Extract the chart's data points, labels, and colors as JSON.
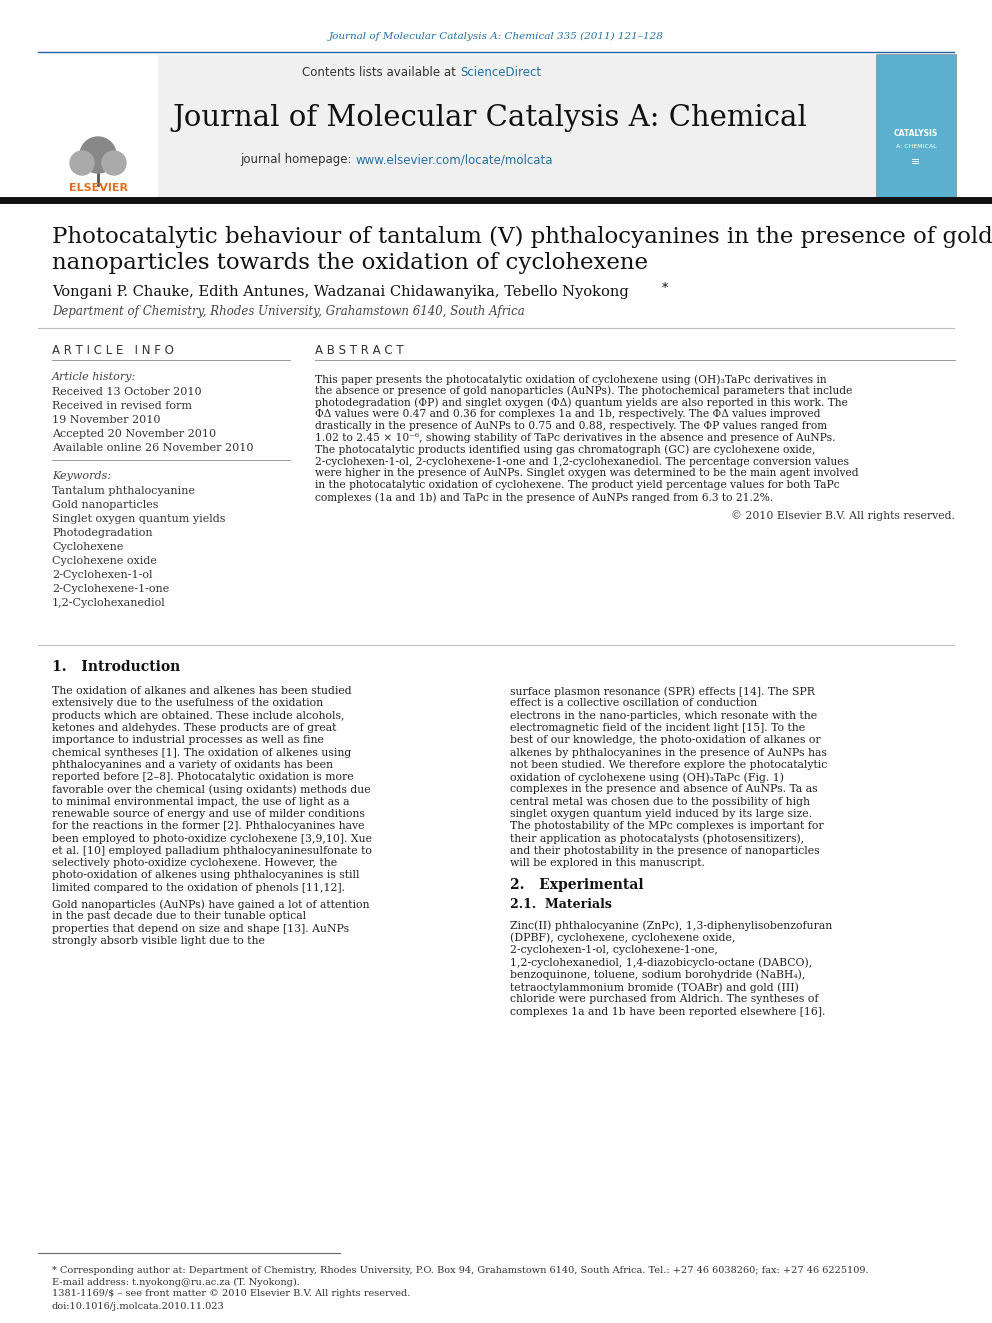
{
  "journal_ref": "Journal of Molecular Catalysis A: Chemical 335 (2011) 121–128",
  "journal_title": "Journal of Molecular Catalysis A: Chemical",
  "journal_homepage_prefix": "journal homepage: ",
  "journal_homepage_link": "www.elsevier.com/locate/molcata",
  "contents_prefix": "Contents lists available at ",
  "contents_link": "ScienceDirect",
  "paper_title_line1": "Photocatalytic behaviour of tantalum (V) phthalocyanines in the presence of gold",
  "paper_title_line2": "nanoparticles towards the oxidation of cyclohexene",
  "authors": "Vongani P. Chauke, Edith Antunes, Wadzanai Chidawanyika, Tebello Nyokong",
  "affiliation": "Department of Chemistry, Rhodes University, Grahamstown 6140, South Africa",
  "article_info_heading": "A R T I C L E   I N F O",
  "abstract_heading": "A B S T R A C T",
  "article_history_label": "Article history:",
  "received": "Received 13 October 2010",
  "revised": "Received in revised form",
  "revised_date": "19 November 2010",
  "accepted": "Accepted 20 November 2010",
  "available": "Available online 26 November 2010",
  "keywords_label": "Keywords:",
  "keywords": [
    "Tantalum phthalocyanine",
    "Gold nanoparticles",
    "Singlet oxygen quantum yields",
    "Photodegradation",
    "Cyclohexene",
    "Cyclohexene oxide",
    "2-Cyclohexen-1-ol",
    "2-Cyclohexene-1-one",
    "1,2-Cyclohexanediol"
  ],
  "abstract_text": "This paper presents the photocatalytic oxidation of cyclohexene using (OH)₃TaPc derivatives in the absence or presence of gold nanoparticles (AuNPs). The photochemical parameters that include photodegradation (ΦP) and singlet oxygen (ΦΔ) quantum yields are also reported in this work. The ΦΔ values were 0.47 and 0.36 for complexes 1a and 1b, respectively. The ΦΔ values improved drastically in the presence of AuNPs to 0.75 and 0.88, respectively. The ΦP values ranged from 1.02 to 2.45 × 10⁻⁶, showing stability of TaPc derivatives in the absence and presence of AuNPs. The photocatalytic products identified using gas chromatograph (GC) are cyclohexene oxide, 2-cyclohexen-1-ol, 2-cyclohexene-1-one and 1,2-cyclohexanediol. The percentage conversion values were higher in the presence of AuNPs. Singlet oxygen was determined to be the main agent involved in the photocatalytic oxidation of cyclohexene. The product yield percentage values for both TaPc complexes (1a and 1b) and TaPc in the presence of AuNPs ranged from 6.3 to 21.2%.",
  "copyright": "© 2010 Elsevier B.V. All rights reserved.",
  "intro_heading": "1.   Introduction",
  "intro_para_indent": "   The oxidation of alkanes and alkenes has been studied extensively due to the usefulness of the oxidation products which are obtained. These include alcohols, ketones and aldehydes. These products are of great importance to industrial processes as well as fine chemical syntheses [1]. The oxidation of alkenes using phthalocyanines and a variety of oxidants has been reported before [2–8]. Photocatalytic oxidation is more favorable over the chemical (using oxidants) methods due to minimal environmental impact, the use of light as a renewable source of energy and use of milder conditions for the reactions in the former [2]. Phthalocyanines have been employed to photo-oxidize cyclohexene [3,9,10]. Xue et al. [10] employed palladium phthalocyaninesulfonate to selectively photo-oxidize cyclohexene. However, the photo-oxidation of alkenes using phthalocyanines is still limited compared to the oxidation of phenols [11,12].",
  "intro_para2": "   Gold nanoparticles (AuNPs) have gained a lot of attention in the past decade due to their tunable optical properties that depend on size and shape [13]. AuNPs strongly absorb visible light due to the",
  "right_col_text1": "surface plasmon resonance (SPR) effects [14]. The SPR effect is a collective oscillation of conduction electrons in the nano-particles, which resonate with the electromagnetic field of the incident light [15]. To the best of our knowledge, the photo-oxidation of alkanes or alkenes by phthalocyanines in the presence of AuNPs has not been studied. We therefore explore the photocatalytic oxidation of cyclohexene using (OH)₃TaPc (Fig. 1) complexes in the presence and absence of AuNPs. Ta as central metal was chosen due to the possibility of high singlet oxygen quantum yield induced by its large size. The photostability of the MPc complexes is important for their application as photocatalysts (photosensitizers), and their photostability in the presence of nanoparticles will be explored in this manuscript.",
  "experimental_heading": "2.   Experimental",
  "experimental_subheading": "2.1.  Materials",
  "experimental_text": "   Zinc(II) phthalocyanine (ZnPc), 1,3-diphenylisobenzofuran (DPBF), cyclohexene, cyclohexene oxide, 2-cyclohexen-1-ol, cyclohexene-1-one, 1,2-cyclohexanediol, 1,4-diazobicyclo-octane (DABCO), benzoquinone, toluene, sodium borohydride (NaBH₄), tetraoctylammonium bromide (TOABr) and gold (III) chloride were purchased from Aldrich. The syntheses of complexes 1a and 1b have been reported elsewhere [16].",
  "footnote_line1": "* Corresponding author at: Department of Chemistry, Rhodes University, P.O. Box 94, Grahamstown 6140, South Africa. Tel.: +27 46 6038260; fax: +27 46 6225109.",
  "footnote_line2": "  E-mail address: t.nyokong@ru.ac.za (T. Nyokong).",
  "issn_text": "1381-1169/$ – see front matter © 2010 Elsevier B.V. All rights reserved.",
  "doi_text": "doi:10.1016/j.molcata.2010.11.023",
  "bg_color": "#ffffff",
  "link_color": "#2471a3",
  "orange_color": "#e07020"
}
